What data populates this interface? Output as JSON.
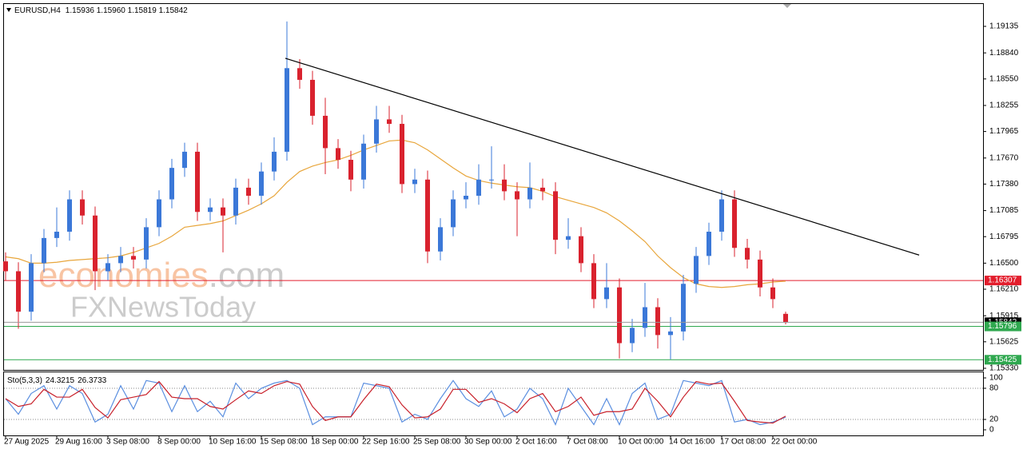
{
  "chart_data": [
    {
      "type": "candlestick",
      "title": "EURUSD,H4",
      "ohlc_label": "1.15936 1.15960 1.15819 1.15842",
      "watermark": [
        "economies",
        ".com",
        "FXNewsToday"
      ],
      "categories": [
        "27 Aug 2025",
        null,
        null,
        null,
        "29 Aug 16:00",
        null,
        null,
        null,
        "3 Sep 08:00",
        null,
        null,
        null,
        "8 Sep 00:00",
        null,
        null,
        null,
        "10 Sep 16:00",
        null,
        null,
        null,
        "15 Sep 08:00",
        null,
        null,
        null,
        "18 Sep 00:00",
        null,
        null,
        null,
        "22 Sep 16:00",
        null,
        null,
        null,
        "25 Sep 08:00",
        null,
        null,
        null,
        "30 Sep 00:00",
        null,
        null,
        null,
        "2 Oct 16:00",
        null,
        null,
        null,
        "7 Oct 08:00",
        null,
        null,
        null,
        "10 Oct 00:00",
        null,
        null,
        null,
        "14 Oct 16:00",
        null,
        null,
        null,
        "17 Oct 08:00",
        null,
        null,
        null,
        "22 Oct 00:00",
        null
      ],
      "open": [
        1.1652,
        1.1641,
        1.1596,
        1.165,
        1.1678,
        1.1685,
        1.1721,
        1.1703,
        1.1641,
        1.165,
        1.1658,
        1.1654,
        1.169,
        1.1721,
        1.1756,
        1.1774,
        1.1707,
        1.1712,
        1.1703,
        1.1734,
        1.1725,
        1.1752,
        1.1774,
        1.1867,
        1.1854,
        1.1814,
        1.1778,
        1.1765,
        1.1743,
        1.1783,
        1.181,
        1.1805,
        1.1738,
        1.1743,
        1.1663,
        1.169,
        1.1721,
        1.1725,
        1.1743,
        1.1743,
        1.173,
        1.1721,
        1.1734,
        1.173,
        1.1676,
        1.168,
        1.165,
        1.161,
        1.1623,
        1.1561,
        1.1578,
        1.1601,
        1.157,
        1.1574,
        1.1627,
        1.1658,
        1.1685,
        1.1721,
        1.1667,
        1.1654,
        1.1623,
        1.15936
      ],
      "high": [
        1.1662,
        1.1651,
        1.166,
        1.1688,
        1.1712,
        1.1731,
        1.1731,
        1.1713,
        1.166,
        1.1668,
        1.1668,
        1.17,
        1.1731,
        1.1766,
        1.1784,
        1.1784,
        1.1722,
        1.1722,
        1.1744,
        1.1744,
        1.1762,
        1.179,
        1.1919,
        1.1877,
        1.1864,
        1.1834,
        1.1788,
        1.1775,
        1.1793,
        1.1825,
        1.1825,
        1.1815,
        1.1755,
        1.1753,
        1.17,
        1.1731,
        1.174,
        1.176,
        1.178,
        1.176,
        1.174,
        1.1762,
        1.1744,
        1.174,
        1.17,
        1.169,
        1.166,
        1.165,
        1.1633,
        1.1588,
        1.1628,
        1.1611,
        1.159,
        1.1637,
        1.1668,
        1.1695,
        1.1731,
        1.1731,
        1.1677,
        1.1664,
        1.1633,
        1.1596
      ],
      "low": [
        1.1631,
        1.1577,
        1.1586,
        1.164,
        1.1668,
        1.1675,
        1.1693,
        1.162,
        1.1631,
        1.164,
        1.1644,
        1.1644,
        1.168,
        1.1711,
        1.1746,
        1.1697,
        1.1697,
        1.1662,
        1.1693,
        1.1715,
        1.1715,
        1.1742,
        1.1764,
        1.1844,
        1.1804,
        1.1749,
        1.1755,
        1.173,
        1.1733,
        1.1773,
        1.1795,
        1.1728,
        1.1728,
        1.165,
        1.1653,
        1.168,
        1.1711,
        1.1715,
        1.1733,
        1.172,
        1.168,
        1.1711,
        1.172,
        1.166,
        1.1666,
        1.164,
        1.16,
        1.16,
        1.1544,
        1.1551,
        1.1568,
        1.1555,
        1.1543,
        1.1564,
        1.1617,
        1.1648,
        1.1675,
        1.1657,
        1.1644,
        1.1613,
        1.16,
        1.15819
      ],
      "close": [
        1.1641,
        1.1596,
        1.165,
        1.1678,
        1.1685,
        1.1721,
        1.1703,
        1.1641,
        1.165,
        1.1658,
        1.1654,
        1.169,
        1.1721,
        1.1756,
        1.1774,
        1.1707,
        1.1712,
        1.1703,
        1.1734,
        1.1725,
        1.1752,
        1.1774,
        1.1867,
        1.1854,
        1.1814,
        1.1778,
        1.1765,
        1.1743,
        1.1783,
        1.181,
        1.1805,
        1.1738,
        1.1743,
        1.1663,
        1.169,
        1.1721,
        1.1725,
        1.1743,
        1.1743,
        1.173,
        1.1721,
        1.1734,
        1.173,
        1.1676,
        1.168,
        1.165,
        1.161,
        1.1623,
        1.1561,
        1.1578,
        1.1601,
        1.157,
        1.1574,
        1.1627,
        1.1658,
        1.1685,
        1.1721,
        1.1667,
        1.1654,
        1.1623,
        1.161,
        1.15842
      ],
      "up_color": "#3b78d8",
      "down_color": "#d9222e",
      "series": [
        {
          "color": "#e8a63c",
          "values": [
            1.1657,
            1.1655,
            1.165,
            1.165,
            1.1651,
            1.1653,
            1.1654,
            1.1655,
            1.1656,
            1.1658,
            1.1662,
            1.1667,
            1.1672,
            1.168,
            1.169,
            1.1692,
            1.1694,
            1.1697,
            1.1703,
            1.1709,
            1.1716,
            1.1725,
            1.174,
            1.1752,
            1.1758,
            1.1762,
            1.1765,
            1.177,
            1.1776,
            1.1781,
            1.1786,
            1.1787,
            1.1784,
            1.1776,
            1.1766,
            1.1756,
            1.1747,
            1.1742,
            1.1739,
            1.1737,
            1.1735,
            1.1734,
            1.173,
            1.1724,
            1.172,
            1.1716,
            1.1712,
            1.1706,
            1.1697,
            1.1686,
            1.1674,
            1.1658,
            1.1645,
            1.1634,
            1.1627,
            1.1624,
            1.1623,
            1.1624,
            1.1626,
            1.1627,
            1.1629,
            1.163
          ]
        }
      ],
      "trendline": {
        "color": "#000000",
        "x": [
          21.875,
          71.44
        ],
        "y": [
          1.1878,
          1.1659
        ]
      },
      "levels": [
        {
          "value": 1.16307,
          "color": "#e31e2d"
        },
        {
          "value": 1.15796,
          "color": "#2fa84f"
        },
        {
          "value": 1.15425,
          "color": "#2fa84f"
        }
      ],
      "current_color": "#000000",
      "ylim": [
        1.15312,
        1.19384
      ],
      "yticks": [
        1.19135,
        {
          "value": 1.1884,
          "label": "1.18840"
        },
        {
          "value": 1.1855,
          "label": "1.18550"
        },
        1.18255,
        1.17965,
        {
          "value": 1.1767,
          "label": "1.17670"
        },
        {
          "value": 1.1738,
          "label": "1.17380"
        },
        1.17085,
        1.16795,
        {
          "value": 1.165,
          "label": "1.16500"
        },
        {
          "value": 1.1621,
          "label": "1.16210"
        },
        1.15915,
        1.15625,
        {
          "value": 1.1533,
          "label": "1.15330"
        }
      ]
    },
    {
      "type": "line",
      "title": "Sto(5,3,3)",
      "grid": "dotted",
      "ylim": [
        -10.8,
        110.8
      ],
      "yticks": [
        100,
        80,
        20,
        0
      ],
      "series": [
        {
          "color": "#5b8fe0",
          "values": [
            60,
            30,
            70,
            85,
            40,
            85,
            70,
            15,
            30,
            85,
            40,
            95,
            90,
            35,
            85,
            35,
            55,
            25,
            90,
            60,
            80,
            90,
            95,
            80,
            10,
            25,
            25,
            25,
            90,
            85,
            80,
            15,
            30,
            20,
            60,
            95,
            60,
            45,
            75,
            25,
            40,
            80,
            60,
            10,
            80,
            45,
            10,
            60,
            10,
            70,
            90,
            20,
            30,
            95,
            90,
            85,
            95,
            15,
            20,
            10,
            15,
            24.3215
          ]
        },
        {
          "color": "#c8202a",
          "values": [
            60,
            45,
            50,
            78,
            63,
            63,
            78,
            43,
            23,
            58,
            63,
            68,
            93,
            63,
            60,
            60,
            45,
            40,
            58,
            75,
            70,
            85,
            93,
            88,
            45,
            18,
            25,
            25,
            58,
            88,
            83,
            48,
            23,
            25,
            40,
            78,
            78,
            53,
            60,
            50,
            33,
            60,
            70,
            35,
            45,
            63,
            28,
            35,
            35,
            40,
            80,
            55,
            25,
            63,
            93,
            88,
            90,
            55,
            18,
            15,
            13,
            26.3733
          ]
        }
      ]
    }
  ]
}
